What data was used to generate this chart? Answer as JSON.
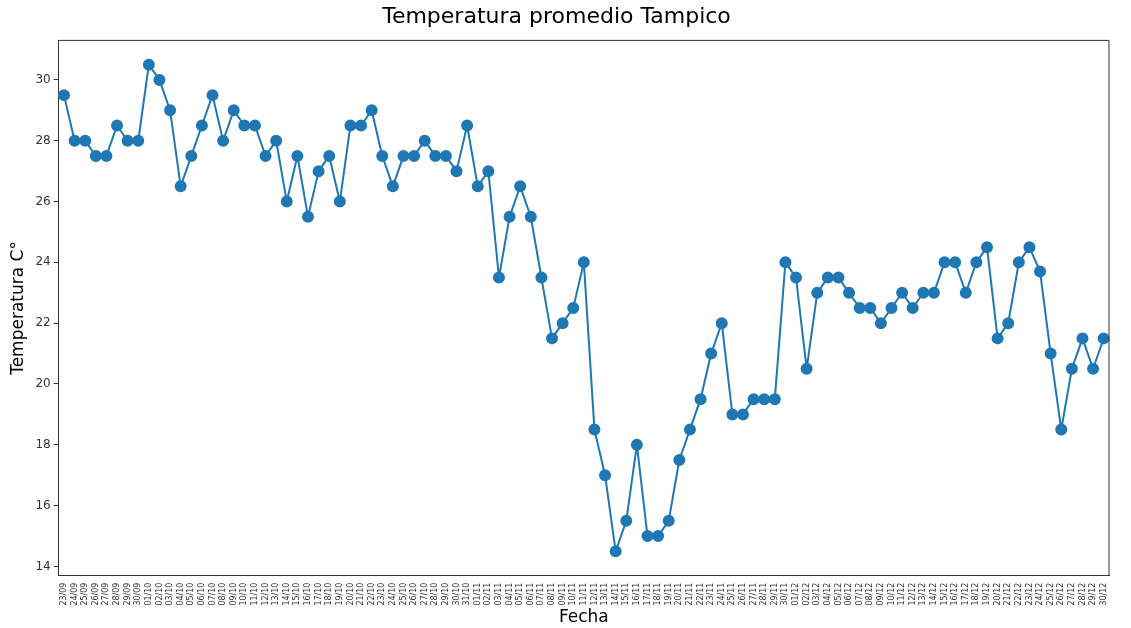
{
  "chart_data": {
    "type": "line",
    "title": "Temperatura promedio Tampico",
    "xlabel": "Fecha",
    "ylabel": "Temperatura C°",
    "categories": [
      "23/09",
      "24/09",
      "25/09",
      "26/09",
      "27/09",
      "28/09",
      "29/09",
      "30/09",
      "01/10",
      "02/10",
      "03/10",
      "04/10",
      "05/10",
      "06/10",
      "07/10",
      "08/10",
      "09/10",
      "10/10",
      "11/10",
      "12/10",
      "13/10",
      "14/10",
      "15/10",
      "16/10",
      "17/10",
      "18/10",
      "19/10",
      "20/10",
      "21/10",
      "22/10",
      "23/10",
      "24/10",
      "25/10",
      "26/10",
      "27/10",
      "28/10",
      "29/10",
      "30/10",
      "31/10",
      "01/11",
      "02/11",
      "03/11",
      "04/11",
      "05/11",
      "06/11",
      "07/11",
      "08/11",
      "09/11",
      "10/11",
      "11/11",
      "12/11",
      "13/11",
      "14/11",
      "15/11",
      "16/11",
      "17/11",
      "18/11",
      "19/11",
      "20/11",
      "21/11",
      "22/11",
      "23/11",
      "24/11",
      "25/11",
      "26/11",
      "27/11",
      "28/11",
      "29/11",
      "30/11",
      "01/12",
      "02/12",
      "03/12",
      "04/12",
      "05/12",
      "06/12",
      "07/12",
      "08/12",
      "09/12",
      "10/12",
      "11/12",
      "12/12",
      "13/12",
      "14/12",
      "15/12",
      "16/12",
      "17/12",
      "18/12",
      "19/12",
      "20/12",
      "21/12",
      "22/12",
      "23/12",
      "24/12",
      "25/12",
      "26/12",
      "27/12",
      "28/12",
      "29/12",
      "30/12"
    ],
    "series": [
      {
        "color": "#1f77b4",
        "values": [
          29.5,
          28,
          28,
          27.5,
          27.5,
          28.5,
          28,
          28,
          30.5,
          30,
          29,
          26.5,
          27.5,
          28.5,
          29.5,
          28,
          29,
          28.5,
          28.5,
          27.5,
          28,
          26,
          27.5,
          25.5,
          27,
          27.5,
          26,
          28.5,
          28.5,
          29,
          27.5,
          26.5,
          27.5,
          27.5,
          28,
          27.5,
          27.5,
          27,
          28.5,
          26.5,
          27,
          23.5,
          25.5,
          26.5,
          25.5,
          23.5,
          21.5,
          22,
          22.5,
          24,
          18.5,
          17,
          14.5,
          15.5,
          18,
          15,
          15,
          15.5,
          17.5,
          18.5,
          19.5,
          21,
          22,
          19,
          19,
          19.5,
          19.5,
          19.5,
          24,
          23.5,
          20.5,
          23,
          23.5,
          23.5,
          23,
          22.5,
          22.5,
          22,
          22.5,
          23,
          22.5,
          23,
          23,
          24,
          24,
          23,
          24,
          24.5,
          21.5,
          22,
          24,
          24.5,
          23.7,
          21,
          18.5,
          20.5,
          21.5,
          20.5,
          21.5
        ]
      }
    ],
    "ylim": [
      13.7,
      31.3
    ],
    "yticks": [
      14,
      16,
      18,
      20,
      22,
      24,
      26,
      28,
      30
    ],
    "grid": false,
    "legend": false,
    "marker": "circle",
    "line_style": "solid"
  }
}
